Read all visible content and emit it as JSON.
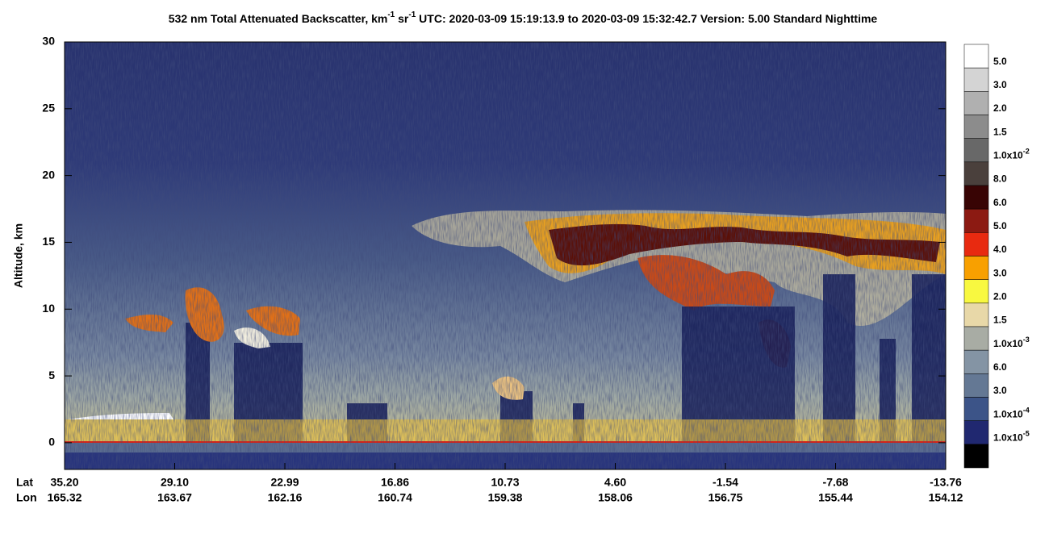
{
  "chart_data": {
    "type": "curtain",
    "title": [
      {
        "text": "532 nm Total Attenuated Backscatter, km"
      },
      {
        "text": "-1",
        "sup": true
      },
      {
        "text": " sr"
      },
      {
        "text": "-1",
        "sup": true
      },
      {
        "text": "    UTC:  2020-03-09 15:19:13.9  to  2020-03-09 15:32:42.7    Version: 5.00  Standard  Nighttime"
      }
    ],
    "y_label": "Altitude, km",
    "ylim": [
      -2,
      30
    ],
    "yticks": [
      0,
      5,
      10,
      15,
      20,
      25,
      30
    ],
    "x_row_labels": [
      "Lat",
      "Lon"
    ],
    "lat": [
      "35.20",
      "29.10",
      "22.99",
      "16.86",
      "10.73",
      "4.60",
      "-1.54",
      "-7.68",
      "-13.76"
    ],
    "lon": [
      "165.32",
      "163.67",
      "162.16",
      "160.74",
      "159.38",
      "158.06",
      "156.75",
      "155.44",
      "154.12"
    ],
    "colorbar": [
      {
        "label": "5.0",
        "color": "#ffffff"
      },
      {
        "label": "3.0",
        "color": "#d4d4d4"
      },
      {
        "label": "2.0",
        "color": "#b0b0b0"
      },
      {
        "label": "1.5",
        "color": "#8c8c8c"
      },
      {
        "label": "1.0x10",
        "exp": "-2",
        "color": "#686868"
      },
      {
        "label": "8.0",
        "color": "#4a403c"
      },
      {
        "label": "6.0",
        "color": "#380404"
      },
      {
        "label": "5.0",
        "color": "#8c1a12"
      },
      {
        "label": "4.0",
        "color": "#e82a10"
      },
      {
        "label": "3.0",
        "color": "#f8a000"
      },
      {
        "label": "2.0",
        "color": "#f8f840"
      },
      {
        "label": "1.5",
        "color": "#e8d8a8"
      },
      {
        "label": "1.0x10",
        "exp": "-3",
        "color": "#a8aca4"
      },
      {
        "label": "6.0",
        "color": "#8494a4"
      },
      {
        "label": "3.0",
        "color": "#647894"
      },
      {
        "label": "1.0x10",
        "exp": "-4",
        "color": "#3c5488"
      },
      {
        "label": "1.0x10",
        "exp": "-5",
        "color": "#202870"
      },
      {
        "label": null,
        "color": "#000000"
      }
    ]
  }
}
